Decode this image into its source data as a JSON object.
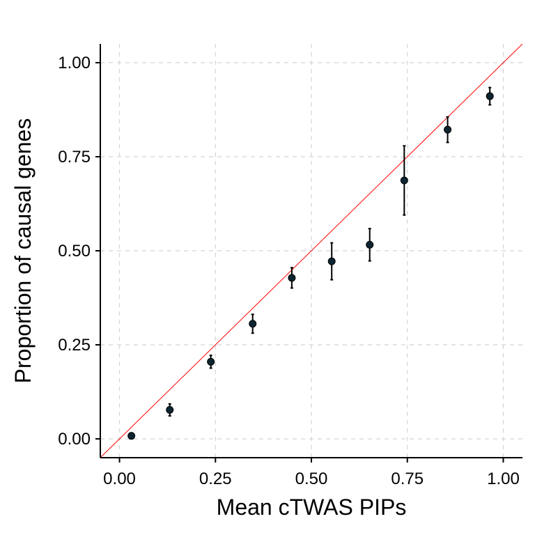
{
  "chart_data": {
    "type": "scatter",
    "title": "",
    "xlabel": "Mean cTWAS PIPs",
    "ylabel": "Proportion of causal genes",
    "xlim": [
      -0.05,
      1.05
    ],
    "ylim": [
      -0.05,
      1.05
    ],
    "x_ticks": [
      0.0,
      0.25,
      0.5,
      0.75,
      1.0
    ],
    "x_tick_labels": [
      "0.00",
      "0.25",
      "0.50",
      "0.75",
      "1.00"
    ],
    "y_ticks": [
      0.0,
      0.25,
      0.5,
      0.75,
      1.0
    ],
    "y_tick_labels": [
      "0.00",
      "0.25",
      "0.50",
      "0.75",
      "1.00"
    ],
    "grid": true,
    "reference_line": {
      "type": "identity",
      "color": "#ff0000"
    },
    "point_color": "#0d2530",
    "points": [
      {
        "x": 0.031,
        "y": 0.008,
        "ymin": 0.005,
        "ymax": 0.011
      },
      {
        "x": 0.131,
        "y": 0.077,
        "ymin": 0.061,
        "ymax": 0.093
      },
      {
        "x": 0.238,
        "y": 0.205,
        "ymin": 0.188,
        "ymax": 0.222
      },
      {
        "x": 0.347,
        "y": 0.306,
        "ymin": 0.281,
        "ymax": 0.331
      },
      {
        "x": 0.449,
        "y": 0.428,
        "ymin": 0.401,
        "ymax": 0.455
      },
      {
        "x": 0.553,
        "y": 0.472,
        "ymin": 0.423,
        "ymax": 0.521
      },
      {
        "x": 0.652,
        "y": 0.516,
        "ymin": 0.473,
        "ymax": 0.559
      },
      {
        "x": 0.742,
        "y": 0.687,
        "ymin": 0.595,
        "ymax": 0.779
      },
      {
        "x": 0.855,
        "y": 0.822,
        "ymin": 0.788,
        "ymax": 0.856
      },
      {
        "x": 0.965,
        "y": 0.911,
        "ymin": 0.888,
        "ymax": 0.934
      }
    ]
  }
}
